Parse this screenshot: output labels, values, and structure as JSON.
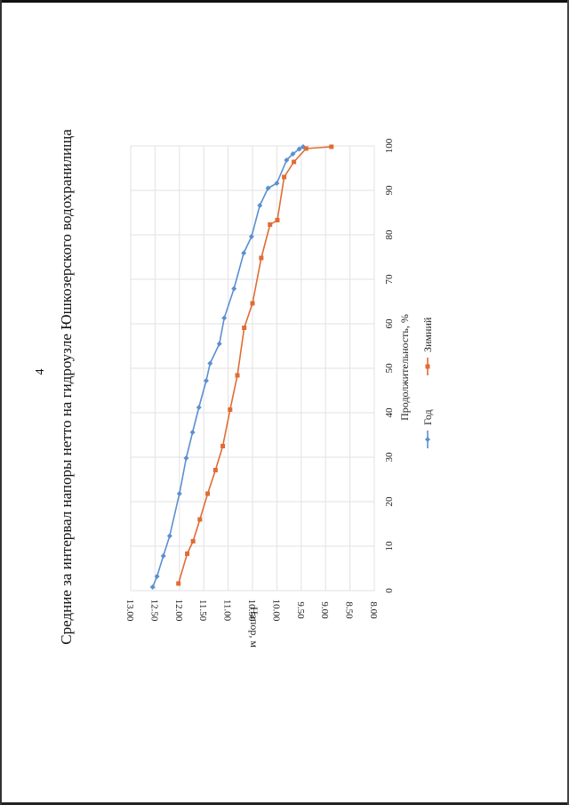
{
  "page": {
    "number": "4"
  },
  "chart_data": {
    "type": "line",
    "orientation": "rotated-90-ccw",
    "title": "Средние за интервал напоры нетто на гидроузле Юшкозерского водохранилища",
    "xlabel": "Продолжительность, %",
    "ylabel": "Напор, м",
    "xlim": [
      0,
      100
    ],
    "ylim": [
      8.0,
      13.0
    ],
    "x_ticks": [
      "0",
      "10",
      "20",
      "30",
      "40",
      "50",
      "60",
      "70",
      "80",
      "90",
      "100"
    ],
    "y_ticks": [
      "8.00",
      "8.50",
      "9.00",
      "9.50",
      "10.00",
      "10.50",
      "11.00",
      "11.50",
      "12.00",
      "12.50",
      "13.00"
    ],
    "grid": true,
    "legend_position": "bottom",
    "series": [
      {
        "name": "Год",
        "color": "#5b8fd1",
        "marker": "diamond",
        "x": [
          0.8,
          3.2,
          7.8,
          12.3,
          21.8,
          29.8,
          35.6,
          41.2,
          47.2,
          51.1,
          55.5,
          61.3,
          67.9,
          75.9,
          79.6,
          86.6,
          90.5,
          91.6,
          96.8,
          98.2,
          99.3,
          99.8
        ],
        "y": [
          12.55,
          12.46,
          12.33,
          12.2,
          12.0,
          11.86,
          11.73,
          11.6,
          11.45,
          11.37,
          11.18,
          11.08,
          10.88,
          10.68,
          10.52,
          10.35,
          10.18,
          10.0,
          9.8,
          9.67,
          9.54,
          9.46
        ]
      },
      {
        "name": "Зимний",
        "color": "#e06c34",
        "marker": "square",
        "x": [
          1.6,
          8.3,
          11.1,
          16.0,
          21.8,
          27.1,
          32.5,
          40.7,
          48.4,
          59.1,
          64.6,
          74.8,
          82.3,
          83.3,
          93.0,
          96.4,
          99.4,
          99.8
        ],
        "y": [
          12.02,
          11.84,
          11.72,
          11.58,
          11.42,
          11.26,
          11.11,
          10.96,
          10.81,
          10.67,
          10.5,
          10.32,
          10.14,
          9.99,
          9.85,
          9.65,
          9.4,
          8.88
        ]
      }
    ]
  }
}
